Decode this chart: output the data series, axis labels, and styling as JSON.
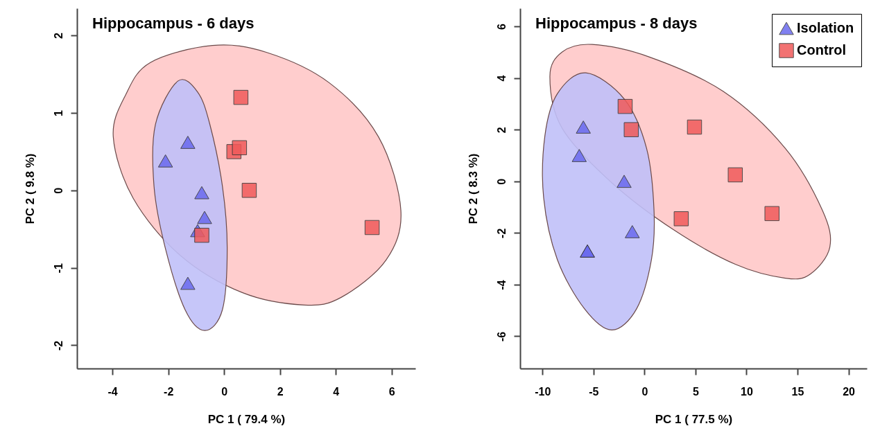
{
  "chart_data": [
    {
      "type": "scatter",
      "title": "Hippocampus - 6 days",
      "xlabel": "PC 1 ( 79.4 %)",
      "ylabel": "PC 2 ( 9.8 %)",
      "xlim": [
        -5.27,
        6.85
      ],
      "ylim": [
        -2.3,
        2.35
      ],
      "xticks": [
        -4,
        -2,
        0,
        2,
        4,
        6
      ],
      "yticks": [
        -2,
        -1,
        0,
        1,
        2
      ],
      "grid": false,
      "legend": false,
      "series": [
        {
          "type": "area",
          "color": "#ffc8c8",
          "x": [
            -3.97,
            -3.53,
            -2.64,
            -0.42,
            1.53,
            3.76,
            5.53,
            6.33,
            5.8,
            4.2,
            2.87,
            0.65,
            -1.57,
            -3.26
          ],
          "values": [
            0.69,
            1.23,
            1.65,
            1.87,
            1.78,
            1.39,
            0.69,
            -0.26,
            -0.9,
            -1.38,
            -1.48,
            -1.32,
            -0.84,
            -0.1
          ]
        },
        {
          "type": "area",
          "color": "#c0c0f8",
          "x": [
            -1.66,
            -2.46,
            -2.51,
            -2.11,
            -1.4,
            -0.69,
            -0.06,
            0.11,
            -0.06,
            -0.51,
            -0.95
          ],
          "values": [
            1.41,
            0.85,
            0.05,
            -0.74,
            -1.54,
            -1.81,
            -1.54,
            -0.74,
            0.05,
            0.85,
            1.27
          ]
        },
        {
          "color": "#6a6aee",
          "marker": "triangle",
          "x": [
            -2.1,
            -1.3,
            -0.8,
            -0.7,
            -0.95,
            -1.3
          ],
          "values": [
            0.38,
            0.62,
            -0.03,
            -0.35,
            -0.52,
            -1.2
          ]
        },
        {
          "color": "#f05a5a",
          "marker": "square",
          "x": [
            0.6,
            0.35,
            0.55,
            0.9,
            5.3,
            -0.8
          ],
          "values": [
            1.2,
            0.5,
            0.55,
            0,
            -0.48,
            -0.58
          ]
        }
      ]
    },
    {
      "type": "scatter",
      "title": "Hippocampus - 8 days",
      "xlabel": "PC 1 ( 77.5 %)",
      "ylabel": "PC 2 ( 8.3 %)",
      "xlim": [
        -12.2,
        21.8
      ],
      "ylim": [
        -7.25,
        6.7
      ],
      "xticks": [
        -10,
        -5,
        0,
        5,
        10,
        15,
        20
      ],
      "yticks": [
        -6,
        -4,
        -2,
        0,
        2,
        4,
        6
      ],
      "grid": false,
      "legend": "top right",
      "series": [
        {
          "type": "area",
          "color": "#ffc8c8",
          "x": [
            -9.28,
            -8.07,
            -5.15,
            0.44,
            7.73,
            13.8,
            17.44,
            18.17,
            16.23,
            13.8,
            8.94,
            2.86,
            -3.2,
            -8.07
          ],
          "values": [
            4.06,
            5.01,
            5.3,
            4.82,
            3.48,
            1.28,
            -1.12,
            -2.55,
            -3.6,
            -3.75,
            -3.22,
            -1.88,
            -0.06,
            2.05
          ]
        },
        {
          "type": "area",
          "color": "#c0c0f8",
          "x": [
            -5.76,
            -8.55,
            -9.77,
            -9.89,
            -8.55,
            -5.88,
            -3.2,
            -0.78,
            0.68,
            0.93,
            0.2,
            -1.99
          ],
          "values": [
            4.2,
            3.39,
            1.76,
            -0.64,
            -3.03,
            -4.94,
            -5.76,
            -4.94,
            -3.03,
            -1.12,
            1.28,
            3.19
          ]
        },
        {
          "name": "Isolation",
          "color": "#6a6aee",
          "marker": "triangle",
          "x": [
            -6,
            -6.4,
            -2,
            -1.2,
            -5.6,
            -5.6
          ],
          "values": [
            2.1,
            1.0,
            0,
            -1.95,
            -2.7,
            -2.7
          ]
        },
        {
          "name": "Control",
          "color": "#f05a5a",
          "marker": "square",
          "x": [
            -1.9,
            -1.3,
            4.9,
            8.9,
            12.5,
            3.6
          ],
          "values": [
            2.9,
            2.0,
            2.1,
            0.25,
            -1.25,
            -1.45
          ]
        }
      ]
    }
  ]
}
